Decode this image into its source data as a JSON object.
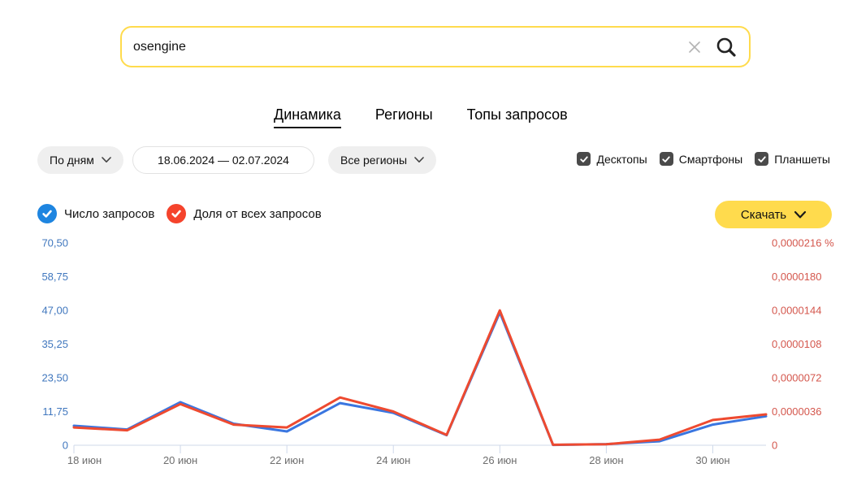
{
  "search": {
    "value": "osengine"
  },
  "tabs": [
    {
      "label": "Динамика",
      "active": true
    },
    {
      "label": "Регионы",
      "active": false
    },
    {
      "label": "Топы запросов",
      "active": false
    }
  ],
  "filters": {
    "period": "По дням",
    "date_range": "18.06.2024 — 02.07.2024",
    "region": "Все регионы",
    "devices": [
      {
        "label": "Десктопы",
        "checked": true
      },
      {
        "label": "Смартфоны",
        "checked": true
      },
      {
        "label": "Планшеты",
        "checked": true
      }
    ]
  },
  "legend": [
    {
      "label": "Число запросов",
      "color": "#1E85E0",
      "checked": true
    },
    {
      "label": "Доля от всех запросов",
      "color": "#F5432C",
      "checked": true
    }
  ],
  "download": {
    "label": "Скачать"
  },
  "colors": {
    "accent_yellow": "#FFDB4D",
    "checkbox_gray": "#4A4A4A",
    "line_blue": "#3A76E0",
    "line_red": "#EE4A30",
    "left_axis_text": "#4077BE",
    "right_axis_text": "#D4574D",
    "axis_line": "#CFD9EA",
    "x_label_text": "#6E6E6E"
  },
  "chart_data": {
    "type": "line",
    "title": "",
    "dates": [
      "18.06",
      "19.06",
      "20.06",
      "21.06",
      "22.06",
      "23.06",
      "24.06",
      "25.06",
      "26.06",
      "27.06",
      "28.06",
      "29.06",
      "30.06",
      "01.07"
    ],
    "x_tick_labels": [
      "18 июн",
      "20 июн",
      "22 июн",
      "24 июн",
      "26 июн",
      "28 июн",
      "30 июн"
    ],
    "x_tick_indices": [
      0,
      2,
      4,
      6,
      8,
      10,
      12
    ],
    "left_axis": {
      "title": "Число запросов",
      "tick_labels": [
        "0",
        "11,75",
        "23,50",
        "35,25",
        "47,00",
        "58,75",
        "70,50"
      ],
      "max": 70.5,
      "color": "#4077BE"
    },
    "right_axis": {
      "title": "Доля от всех запросов",
      "tick_labels": [
        "0",
        "0,0000036",
        "0,0000072",
        "0,0000108",
        "0,0000144",
        "0,0000180",
        "0,0000216 %"
      ],
      "max": 2.16e-05,
      "color": "#D4574D"
    },
    "grid": false,
    "legend_position": "top-left",
    "series": [
      {
        "name": "Число запросов",
        "axis": "left",
        "color": "#3A76E0",
        "values": [
          6.8,
          5.5,
          15,
          7.5,
          4.8,
          14.7,
          11.3,
          3.5,
          46.3,
          0.1,
          0.4,
          1.4,
          7.2,
          10.1
        ]
      },
      {
        "name": "Доля от всех запросов",
        "axis": "right",
        "color": "#EE4A30",
        "values": [
          1.9e-06,
          1.6e-06,
          4.4e-06,
          2.2e-06,
          1.9e-06,
          5.1e-06,
          3.6e-06,
          1.1e-06,
          1.44e-05,
          5e-08,
          1e-07,
          6e-07,
          2.7e-06,
          3.3e-06
        ]
      }
    ]
  }
}
